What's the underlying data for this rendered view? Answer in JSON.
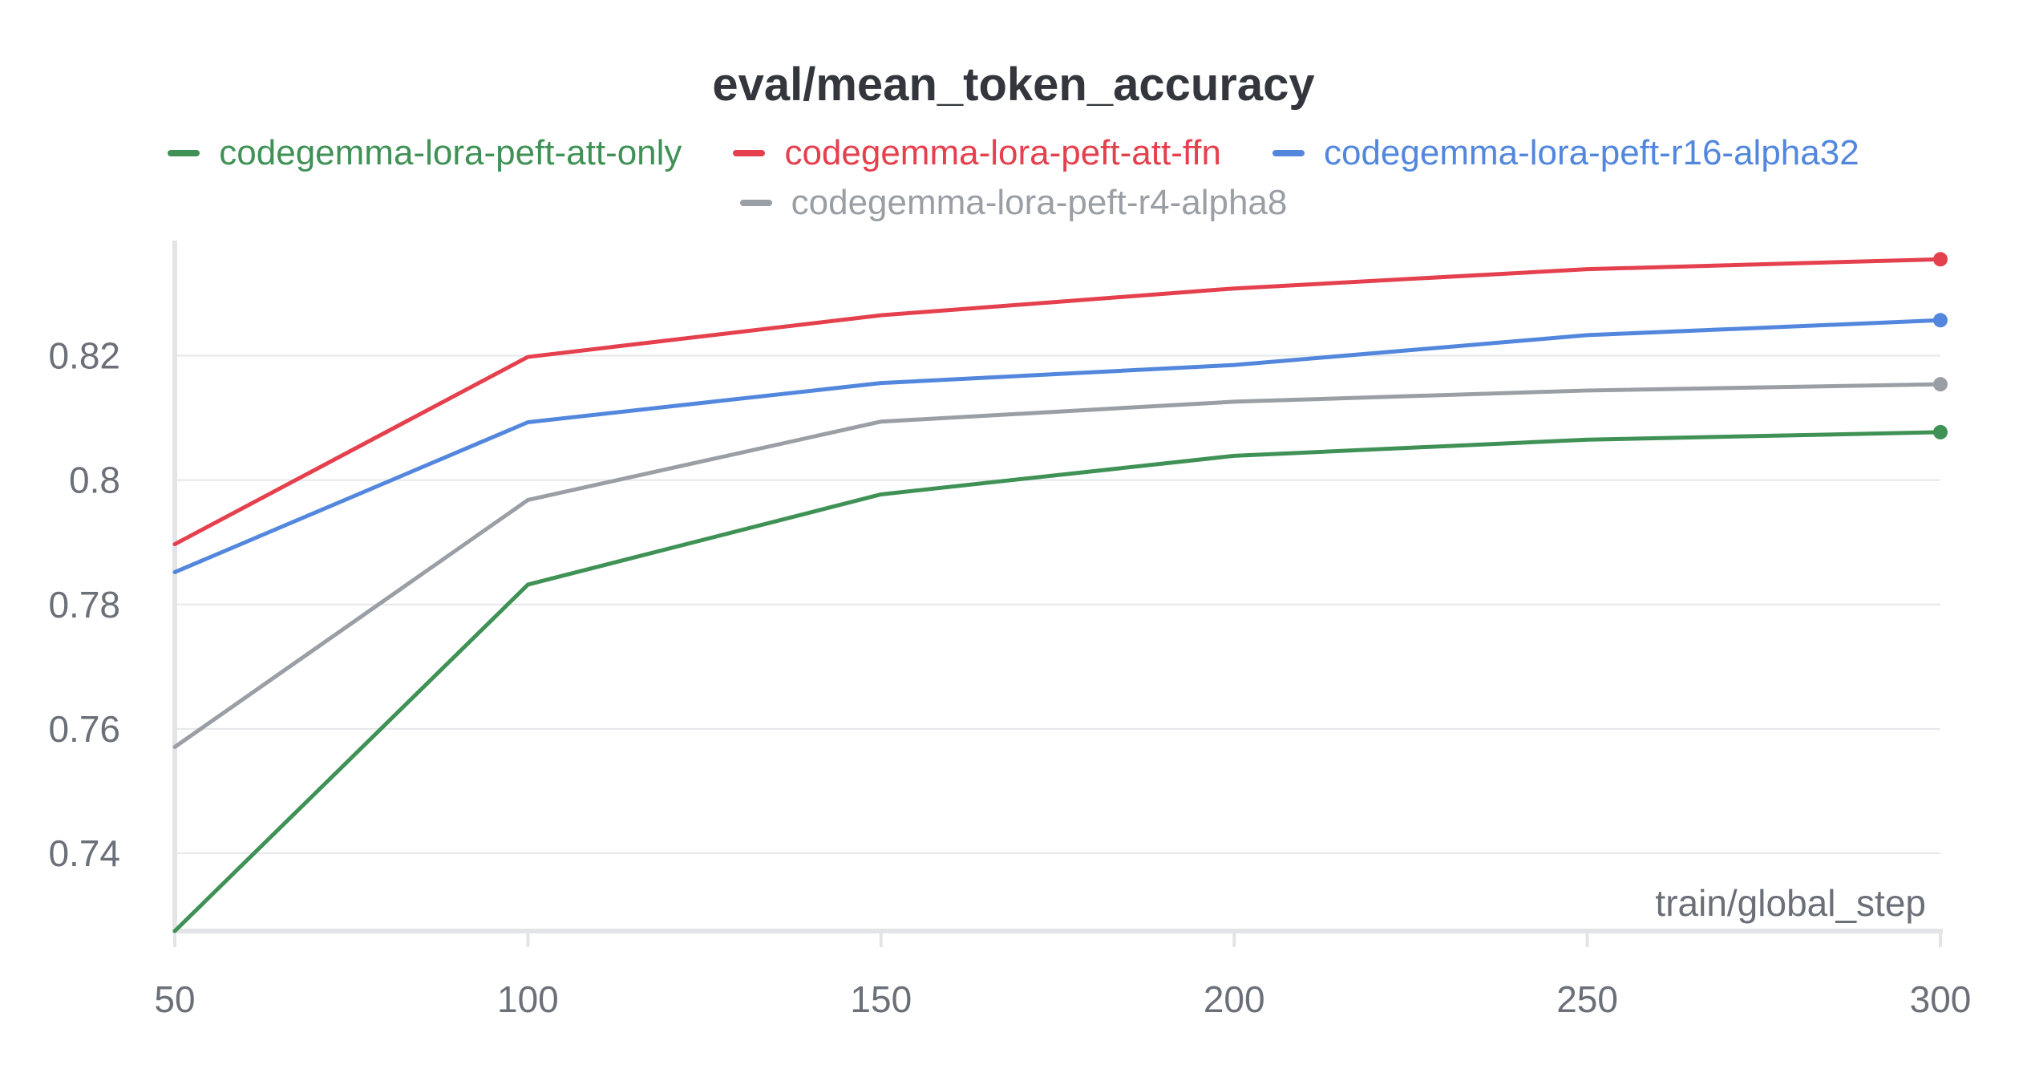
{
  "chart_data": {
    "type": "line",
    "title": "eval/mean_token_accuracy",
    "xlabel": "train/global_step",
    "ylabel": "",
    "x": [
      50,
      100,
      150,
      200,
      250,
      300
    ],
    "xlim": [
      50,
      300
    ],
    "ylim": [
      0.7275,
      0.8385
    ],
    "x_ticks": [
      "50",
      "100",
      "150",
      "200",
      "250",
      "300"
    ],
    "y_ticks": [
      {
        "value": 0.74,
        "label": "0.74"
      },
      {
        "value": 0.76,
        "label": "0.76"
      },
      {
        "value": 0.78,
        "label": "0.78"
      },
      {
        "value": 0.8,
        "label": "0.8"
      },
      {
        "value": 0.82,
        "label": "0.82"
      }
    ],
    "grid": "horizontal",
    "legend_position": "top-center",
    "series": [
      {
        "name": "codegemma-lora-peft-att-only",
        "color": "#3f9155",
        "values": [
          0.7275,
          0.7832,
          0.7977,
          0.8039,
          0.8065,
          0.8077
        ]
      },
      {
        "name": "codegemma-lora-peft-att-ffn",
        "color": "#e5404d",
        "values": [
          0.7897,
          0.8198,
          0.8265,
          0.8308,
          0.8339,
          0.8355
        ]
      },
      {
        "name": "codegemma-lora-peft-r16-alpha32",
        "color": "#5387dd",
        "values": [
          0.7852,
          0.8093,
          0.8156,
          0.8185,
          0.8233,
          0.8257
        ]
      },
      {
        "name": "codegemma-lora-peft-r4-alpha8",
        "color": "#9a9fa5",
        "values": [
          0.7571,
          0.7968,
          0.8094,
          0.8126,
          0.8144,
          0.8154
        ]
      }
    ]
  }
}
